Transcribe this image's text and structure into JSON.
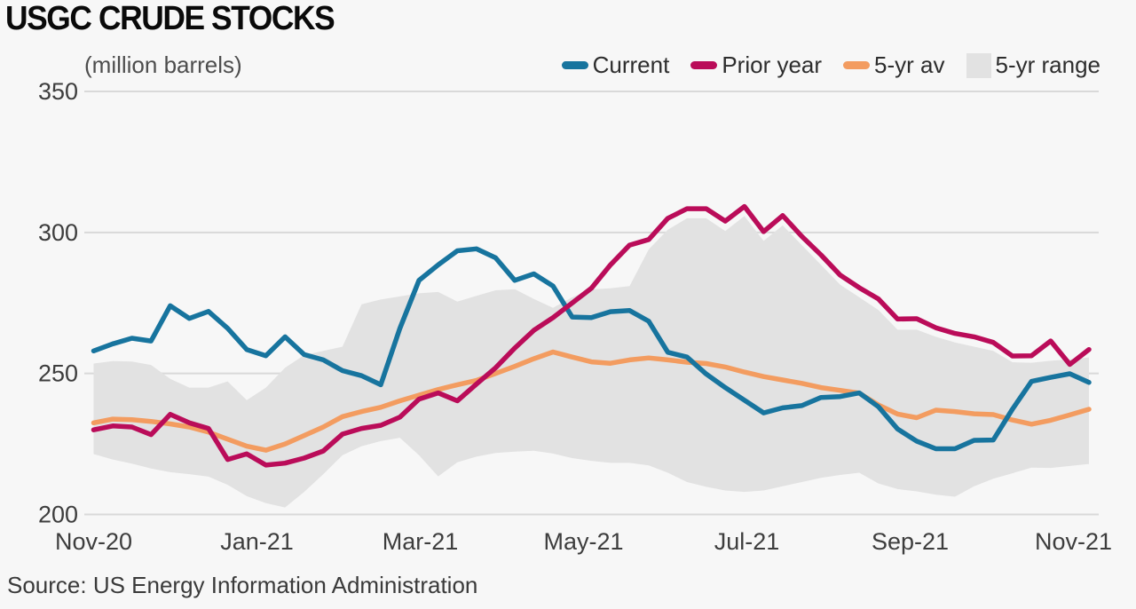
{
  "title": "USGC CRUDE STOCKS",
  "subtitle": "(million barrels)",
  "source": "Source: US Energy Information Administration",
  "colors": {
    "current": "#17749e",
    "prior_year": "#ba0c59",
    "five_yr_avg": "#f39c60",
    "five_yr_range": "#e2e2e2",
    "gridline": "#d9d9d9",
    "axis_text": "#3d3d3d",
    "background": "#f7f7f7"
  },
  "legend": [
    {
      "label": "Current",
      "type": "line",
      "color": "#17749e"
    },
    {
      "label": "Prior year",
      "type": "line",
      "color": "#ba0c59"
    },
    {
      "label": "5-yr av",
      "type": "line",
      "color": "#f39c60"
    },
    {
      "label": "5-yr range",
      "type": "area",
      "color": "#e2e2e2"
    }
  ],
  "chart_data": {
    "type": "line",
    "title": "USGC CRUDE STOCKS",
    "ylabel": "(million barrels)",
    "ylim": [
      200,
      350
    ],
    "y_ticks": [
      350,
      300,
      250,
      200
    ],
    "x_tick_labels": [
      "Nov-20",
      "Jan-21",
      "Mar-21",
      "May-21",
      "Jul-21",
      "Sep-21",
      "Nov-21"
    ],
    "x_unit": "weekly observations, Nov-20 through Nov-21",
    "grid": "horizontal only",
    "legend_position": "top-right",
    "series": [
      {
        "name": "Current",
        "color": "#17749e",
        "values": [
          258,
          260.5,
          262.5,
          261.5,
          274,
          269.5,
          272,
          266,
          258.5,
          256.3,
          263,
          256.7,
          254.8,
          251,
          249.2,
          246,
          266,
          283,
          288.5,
          293.5,
          294.2,
          291,
          283,
          285.3,
          281,
          270,
          269.8,
          271.9,
          272.3,
          268.5,
          257.5,
          255.8,
          249.8,
          245,
          240.5,
          236,
          237.8,
          238.6,
          241.5,
          241.8,
          243.1,
          238.2,
          230.3,
          226,
          223.3,
          223.3,
          226.3,
          226.4,
          237.3,
          247.2,
          248.6,
          249.9,
          246.8
        ]
      },
      {
        "name": "Prior year",
        "color": "#ba0c59",
        "values": [
          230,
          231.4,
          231,
          228.3,
          235.5,
          232.5,
          230.5,
          219.5,
          221.5,
          217.5,
          218.2,
          220,
          222.5,
          228.5,
          230.5,
          231.6,
          234.5,
          240.9,
          243.1,
          240.3,
          246.2,
          252,
          259,
          265.3,
          269.8,
          275,
          280.2,
          288.5,
          295.5,
          297.5,
          305,
          308.4,
          308.4,
          304,
          309.2,
          300.3,
          306,
          298.6,
          292,
          284.9,
          280.4,
          276.4,
          269.3,
          269.4,
          266.2,
          264.2,
          263,
          261,
          256.2,
          256.3,
          261.5,
          253.2,
          258.5
        ]
      },
      {
        "name": "5-yr av",
        "color": "#f39c60",
        "values": [
          232.5,
          233.8,
          233.6,
          233,
          232.1,
          231,
          229.2,
          226.7,
          224.2,
          222.8,
          225,
          228,
          231,
          234.7,
          236.5,
          238,
          240.3,
          242.3,
          244.3,
          246,
          247.5,
          250,
          252.5,
          255.2,
          257.6,
          255.8,
          254.1,
          253.6,
          254.8,
          255.5,
          254.8,
          254,
          253.5,
          252.3,
          250.5,
          248.9,
          247.7,
          246.5,
          245,
          244,
          243,
          238.8,
          235.6,
          234.3,
          237,
          236.5,
          235.7,
          235.4,
          233.5,
          232,
          233.4,
          235.3,
          237.3
        ]
      }
    ],
    "band": {
      "name": "5-yr range",
      "color": "#e2e2e2",
      "upper": [
        253.5,
        254.4,
        254.2,
        253,
        248.1,
        245,
        245,
        247.2,
        240.5,
        245,
        252,
        256.5,
        258,
        259.5,
        274.5,
        276.2,
        277.3,
        278.4,
        278.9,
        275.5,
        277.5,
        279.5,
        279.9,
        276.4,
        273.3,
        277,
        279.8,
        280.2,
        281,
        294,
        301,
        305,
        305,
        300.5,
        305.8,
        297,
        302.5,
        295.5,
        288.5,
        281.5,
        277,
        272.5,
        265.5,
        265.5,
        263,
        261,
        259.5,
        258,
        254,
        253.8,
        254.5,
        255,
        255.7
      ],
      "lower": [
        221.4,
        219.5,
        218,
        216.3,
        215,
        214.3,
        213.4,
        210.5,
        206.5,
        204,
        202.5,
        208,
        214.3,
        221,
        224.2,
        226,
        227.2,
        221,
        213.5,
        218.5,
        220.5,
        221.8,
        222.3,
        222.6,
        221.6,
        220,
        219,
        218.3,
        218.3,
        217.4,
        214.8,
        211.5,
        209.8,
        208.5,
        208,
        208.5,
        210,
        211.5,
        213,
        214,
        214.8,
        211,
        209,
        208.2,
        207,
        206.3,
        210,
        212.7,
        214.6,
        216.6,
        216.5,
        217.2,
        217.9
      ]
    }
  }
}
